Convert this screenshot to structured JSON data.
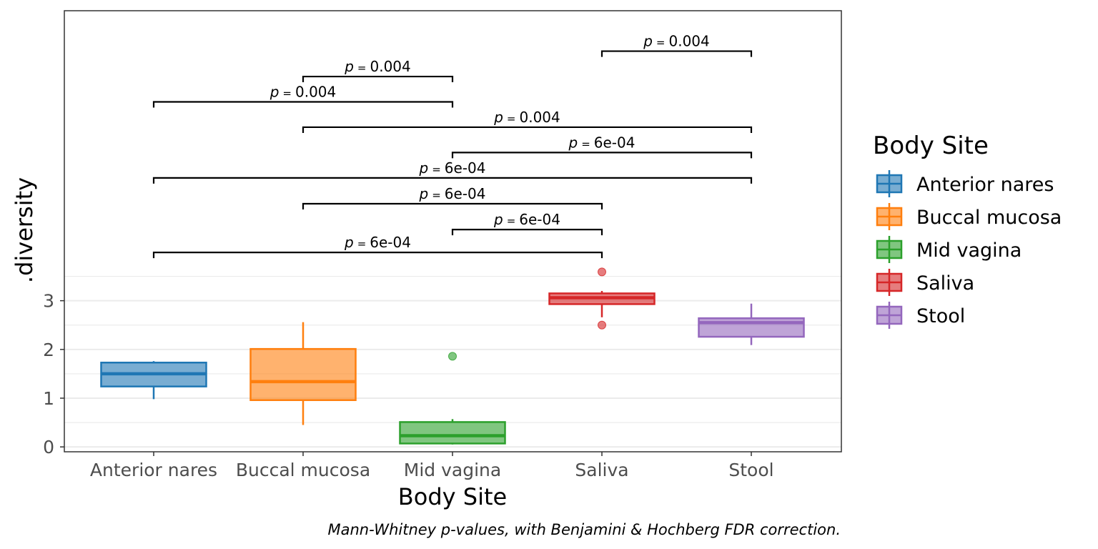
{
  "chart_data": {
    "type": "box",
    "title": "",
    "xlabel": "Body Site",
    "ylabel": ".diversity",
    "ylim": [
      -0.1,
      8.95
    ],
    "y_ticks": [
      0,
      1,
      2,
      3
    ],
    "grid": true,
    "categories": [
      "Anterior nares",
      "Buccal mucosa",
      "Mid vagina",
      "Saliva",
      "Stool"
    ],
    "colors": [
      "#1f77b4",
      "#ff7f0e",
      "#2ca02c",
      "#d62728",
      "#9467bd"
    ],
    "boxes": [
      {
        "category": "Anterior nares",
        "whisker_low": 0.98,
        "q1": 1.24,
        "median": 1.5,
        "q3": 1.73,
        "whisker_high": 1.76,
        "outliers": []
      },
      {
        "category": "Buccal mucosa",
        "whisker_low": 0.45,
        "q1": 0.96,
        "median": 1.34,
        "q3": 2.01,
        "whisker_high": 2.56,
        "outliers": []
      },
      {
        "category": "Mid vagina",
        "whisker_low": 0.05,
        "q1": 0.07,
        "median": 0.23,
        "q3": 0.51,
        "whisker_high": 0.57,
        "outliers": [
          1.86
        ]
      },
      {
        "category": "Saliva",
        "whisker_low": 2.66,
        "q1": 2.93,
        "median": 3.06,
        "q3": 3.15,
        "whisker_high": 3.2,
        "outliers": [
          3.59,
          2.5
        ]
      },
      {
        "category": "Stool",
        "whisker_low": 2.09,
        "q1": 2.26,
        "median": 2.55,
        "q3": 2.64,
        "whisker_high": 2.94,
        "outliers": []
      }
    ],
    "comparisons": [
      {
        "from": "Anterior nares",
        "to": "Saliva",
        "label": "6e-04",
        "y": 3.99
      },
      {
        "from": "Mid vagina",
        "to": "Saliva",
        "label": "6e-04",
        "y": 4.46
      },
      {
        "from": "Buccal mucosa",
        "to": "Saliva",
        "label": "6e-04",
        "y": 4.99
      },
      {
        "from": "Anterior nares",
        "to": "Stool",
        "label": "6e-04",
        "y": 5.52
      },
      {
        "from": "Mid vagina",
        "to": "Stool",
        "label": "6e-04",
        "y": 6.04
      },
      {
        "from": "Buccal mucosa",
        "to": "Stool",
        "label": "0.004",
        "y": 6.56
      },
      {
        "from": "Anterior nares",
        "to": "Mid vagina",
        "label": "0.004",
        "y": 7.08
      },
      {
        "from": "Buccal mucosa",
        "to": "Mid vagina",
        "label": "0.004",
        "y": 7.6
      },
      {
        "from": "Saliva",
        "to": "Stool",
        "label": "0.004",
        "y": 8.12
      }
    ],
    "p_prefix": "p",
    "p_equals": "=",
    "legend": {
      "title": "Body Site",
      "position": "right",
      "entries": [
        "Anterior nares",
        "Buccal mucosa",
        "Mid vagina",
        "Saliva",
        "Stool"
      ]
    },
    "caption": "Mann-Whitney p-values, with Benjamini & Hochberg FDR correction."
  }
}
